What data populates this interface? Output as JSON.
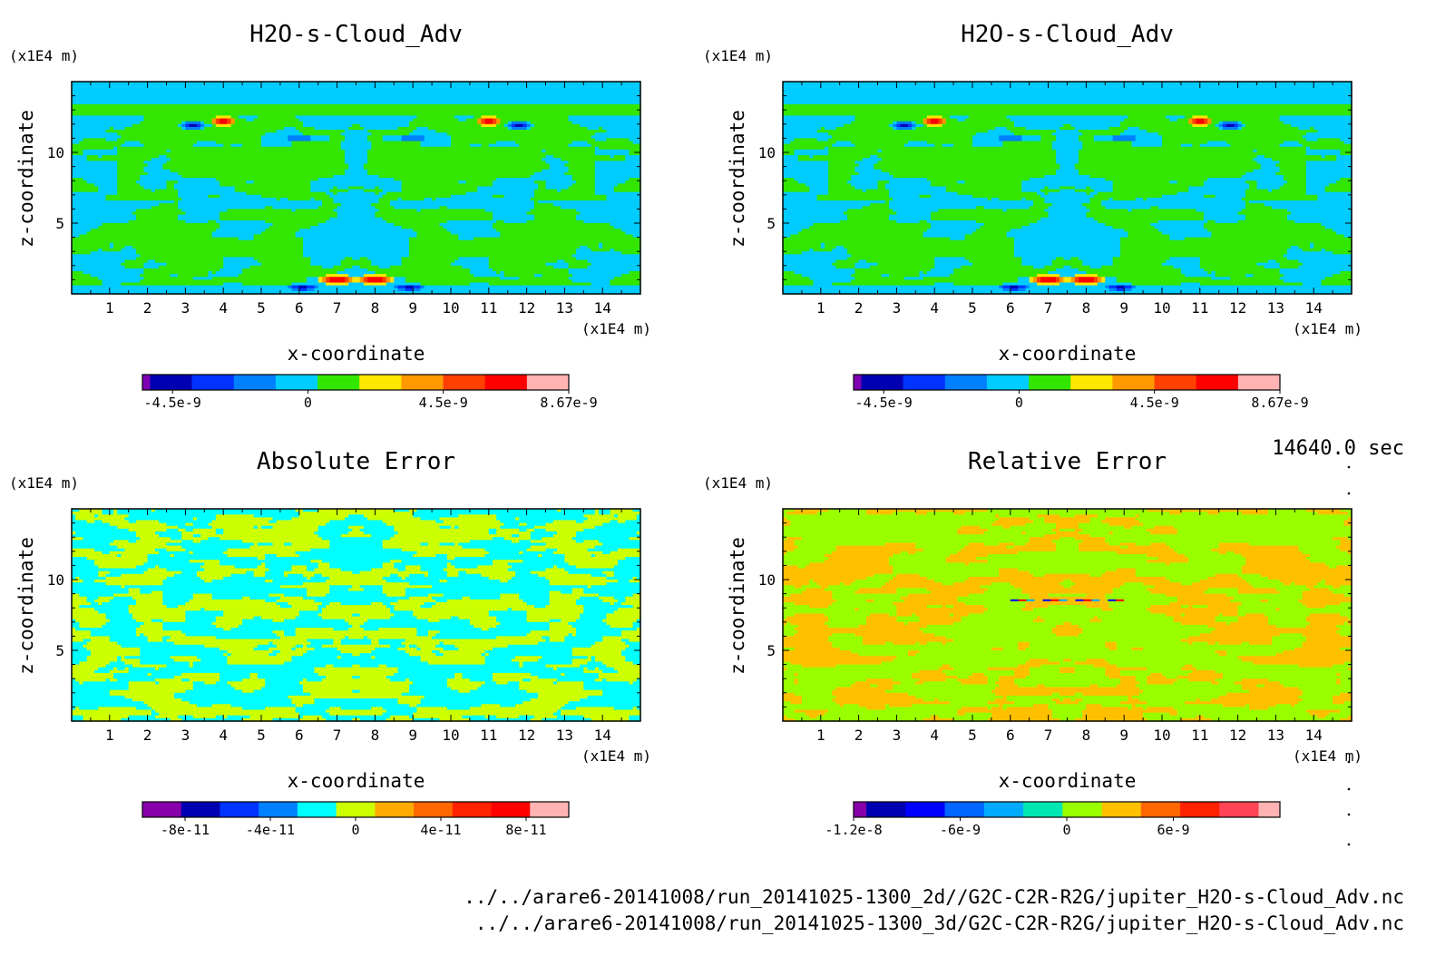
{
  "time_label": "14640.0 sec",
  "files": [
    "../../arare6-20141008/run_20141025-1300_2d//G2C-C2R-R2G/jupiter_H2O-s-Cloud_Adv.nc",
    "../../arare6-20141008/run_20141025-1300_3d/G2C-C2R-R2G/jupiter_H2O-s-Cloud_Adv.nc"
  ],
  "colors": {
    "h2o": [
      "#7f00b2",
      "#0000b2",
      "#0033ff",
      "#0080ff",
      "#00ccff",
      "#33e600",
      "#ffe600",
      "#ff9900",
      "#ff4000",
      "#ff0000",
      "#ffb3b3"
    ],
    "abs": [
      "#8800aa",
      "#0000b2",
      "#0033ff",
      "#0080ff",
      "#00ffff",
      "#ccff00",
      "#ffaa00",
      "#ff6600",
      "#ff2200",
      "#ff0000",
      "#ffb3b3"
    ],
    "rel": [
      "#8800aa",
      "#0000b2",
      "#0000ff",
      "#0066ff",
      "#00aaff",
      "#00e6b3",
      "#99ff00",
      "#ffc000",
      "#ff6600",
      "#ff2200",
      "#ff4455",
      "#ffb3b3"
    ]
  },
  "chart_data": [
    {
      "type": "heatmap",
      "title": "H2O-s-Cloud_Adv",
      "xlabel": "x-coordinate",
      "ylabel": "z-coordinate",
      "xunit": "(x1E4 m)",
      "yunit": "(x1E4 m)",
      "xlim": [
        0,
        15
      ],
      "ylim": [
        0,
        15
      ],
      "xticks": [
        "1",
        "2",
        "3",
        "4",
        "5",
        "6",
        "7",
        "8",
        "9",
        "10",
        "11",
        "12",
        "13",
        "14"
      ],
      "yticks": [
        "5",
        "10"
      ],
      "colorbar": {
        "range": [
          -5.5e-09,
          8.67e-09
        ],
        "labels": [
          {
            "v": -4.5e-09,
            "t": "-4.5e-9"
          },
          {
            "v": 0,
            "t": "0"
          },
          {
            "v": 4.5e-09,
            "t": "4.5e-9"
          },
          {
            "v": 8.67e-09,
            "t": "8.67e-9"
          }
        ]
      }
    },
    {
      "type": "heatmap",
      "title": "H2O-s-Cloud_Adv",
      "xlabel": "x-coordinate",
      "ylabel": "z-coordinate",
      "xunit": "(x1E4 m)",
      "yunit": "(x1E4 m)",
      "xlim": [
        0,
        15
      ],
      "ylim": [
        0,
        15
      ],
      "xticks": [
        "1",
        "2",
        "3",
        "4",
        "5",
        "6",
        "7",
        "8",
        "9",
        "10",
        "11",
        "12",
        "13",
        "14"
      ],
      "yticks": [
        "5",
        "10"
      ],
      "colorbar": {
        "range": [
          -5.5e-09,
          8.67e-09
        ],
        "labels": [
          {
            "v": -4.5e-09,
            "t": "-4.5e-9"
          },
          {
            "v": 0,
            "t": "0"
          },
          {
            "v": 4.5e-09,
            "t": "4.5e-9"
          },
          {
            "v": 8.67e-09,
            "t": "8.67e-9"
          }
        ]
      }
    },
    {
      "type": "heatmap",
      "title": "Absolute Error",
      "xlabel": "x-coordinate",
      "ylabel": "z-coordinate",
      "xunit": "(x1E4 m)",
      "yunit": "(x1E4 m)",
      "xlim": [
        0,
        15
      ],
      "ylim": [
        0,
        15
      ],
      "xticks": [
        "1",
        "2",
        "3",
        "4",
        "5",
        "6",
        "7",
        "8",
        "9",
        "10",
        "11",
        "12",
        "13",
        "14"
      ],
      "yticks": [
        "5",
        "10"
      ],
      "colorbar": {
        "range": [
          -1e-10,
          1e-10
        ],
        "labels": [
          {
            "v": -8e-11,
            "t": "-8e-11"
          },
          {
            "v": -4e-11,
            "t": "-4e-11"
          },
          {
            "v": 0,
            "t": "0"
          },
          {
            "v": 4e-11,
            "t": "4e-11"
          },
          {
            "v": 8e-11,
            "t": "8e-11"
          }
        ]
      }
    },
    {
      "type": "heatmap",
      "title": "Relative Error",
      "xlabel": "x-coordinate",
      "ylabel": "z-coordinate",
      "xunit": "(x1E4 m)",
      "yunit": "(x1E4 m)",
      "xlim": [
        0,
        15
      ],
      "ylim": [
        0,
        15
      ],
      "xticks": [
        "1",
        "2",
        "3",
        "4",
        "5",
        "6",
        "7",
        "8",
        "9",
        "10",
        "11",
        "12",
        "13",
        "14"
      ],
      "yticks": [
        "5",
        "10"
      ],
      "colorbar": {
        "range": [
          -1.2e-08,
          1.2e-08
        ],
        "labels": [
          {
            "v": -1.2e-08,
            "t": "-1.2e-8"
          },
          {
            "v": -6e-09,
            "t": "-6e-9"
          },
          {
            "v": 0,
            "t": "0"
          },
          {
            "v": 6e-09,
            "t": "6e-9"
          }
        ]
      }
    }
  ]
}
